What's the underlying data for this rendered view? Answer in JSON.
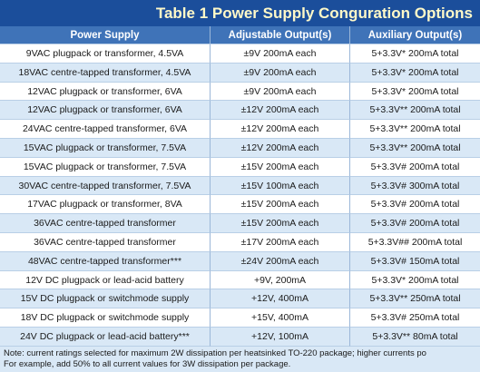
{
  "table": {
    "title": "Table 1 Power Supply Conguration Options",
    "headers": [
      "Power Supply",
      "Adjustable Output(s)",
      "Auxiliary Output(s)"
    ],
    "rows": [
      [
        "9VAC plugpack or transformer, 4.5VA",
        "±9V 200mA each",
        "5+3.3V* 200mA total"
      ],
      [
        "18VAC centre-tapped transformer, 4.5VA",
        "±9V 200mA each",
        "5+3.3V* 200mA total"
      ],
      [
        "12VAC plugpack or transformer, 6VA",
        "±9V 200mA each",
        "5+3.3V* 200mA total"
      ],
      [
        "12VAC plugpack or transformer, 6VA",
        "±12V 200mA each",
        "5+3.3V** 200mA total"
      ],
      [
        "24VAC centre-tapped transformer, 6VA",
        "±12V 200mA each",
        "5+3.3V** 200mA total"
      ],
      [
        "15VAC plugpack or transformer, 7.5VA",
        "±12V 200mA each",
        "5+3.3V** 200mA total"
      ],
      [
        "15VAC plugpack or transformer, 7.5VA",
        "±15V 200mA each",
        "5+3.3V# 200mA total"
      ],
      [
        "30VAC centre-tapped transformer, 7.5VA",
        "±15V 100mA each",
        "5+3.3V# 300mA total"
      ],
      [
        "17VAC plugpack or transformer, 8VA",
        "±15V 200mA each",
        "5+3.3V# 200mA total"
      ],
      [
        "36VAC centre-tapped transformer",
        "±15V 200mA each",
        "5+3.3V# 200mA total"
      ],
      [
        "36VAC centre-tapped transformer",
        "±17V 200mA each",
        "5+3.3V## 200mA total"
      ],
      [
        "48VAC centre-tapped transformer***",
        "±24V 200mA each",
        "5+3.3V# 150mA total"
      ],
      [
        "12V DC plugpack or lead-acid battery",
        "+9V, 200mA",
        "5+3.3V* 200mA total"
      ],
      [
        "15V DC plugpack or switchmode supply",
        "+12V, 400mA",
        "5+3.3V** 250mA total"
      ],
      [
        "18V DC plugpack or switchmode supply",
        "+15V, 400mA",
        "5+3.3V# 250mA total"
      ],
      [
        "24V DC plugpack or lead-acid battery***",
        "+12V, 100mA",
        "5+3.3V** 80mA total"
      ]
    ],
    "note": [
      "Note: current ratings selected for maximum 2W dissipation per heatsinked TO-220 package; higher currents po",
      "For example, add 50% to all current values for 3W dissipation per package."
    ]
  }
}
